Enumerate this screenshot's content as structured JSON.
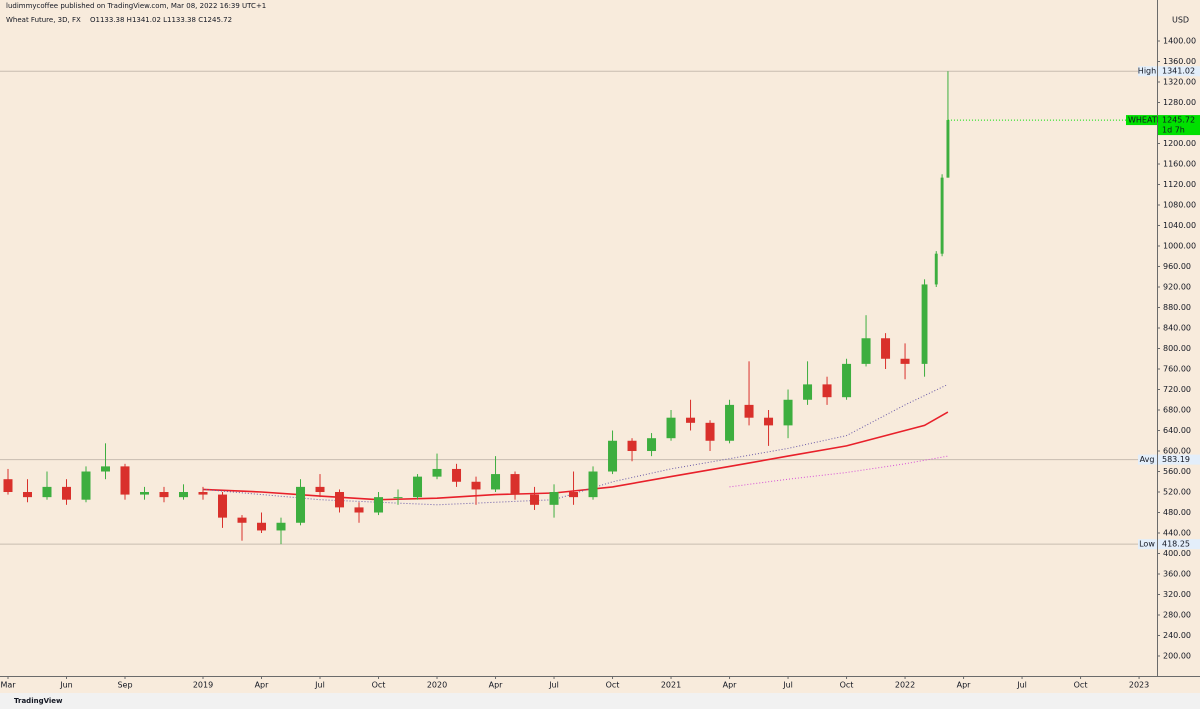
{
  "header": {
    "author_line": "ludimmycoffee published on TradingView.com, Mar 08, 2022 16:39 UTC+1",
    "symbol_line": "Wheat Future, 3D, FX",
    "ohlc": "O1133.38  H1341.02  L1133.38  C1245.72",
    "currency": "USD",
    "brand": "TradingView"
  },
  "chart_data": {
    "type": "candlestick",
    "up_color": "#3dae3f",
    "down_color": "#d9302b",
    "x": [
      0,
      1,
      2,
      3,
      4,
      5,
      6,
      7,
      8,
      9,
      10,
      11,
      12,
      13,
      14,
      15,
      16,
      17,
      18,
      19,
      20,
      21,
      22,
      23,
      24,
      25,
      26,
      27,
      28,
      29,
      30,
      31,
      32,
      33,
      34,
      35,
      36,
      37,
      38,
      39,
      40,
      41,
      42,
      43,
      44,
      45,
      46,
      47,
      47.6,
      47.9,
      48.2
    ],
    "open": [
      545,
      520,
      510,
      530,
      505,
      560,
      570,
      515,
      520,
      510,
      520,
      515,
      470,
      460,
      445,
      460,
      530,
      520,
      490,
      480,
      510,
      510,
      550,
      565,
      540,
      525,
      555,
      515,
      495,
      520,
      510,
      560,
      620,
      600,
      625,
      665,
      655,
      620,
      690,
      665,
      650,
      700,
      730,
      705,
      770,
      820,
      780,
      770,
      925,
      985,
      1133.38
    ],
    "high": [
      565,
      545,
      560,
      545,
      570,
      615,
      575,
      530,
      530,
      535,
      530,
      520,
      475,
      480,
      470,
      545,
      555,
      525,
      500,
      520,
      525,
      555,
      595,
      575,
      550,
      590,
      560,
      530,
      535,
      560,
      570,
      640,
      625,
      635,
      680,
      700,
      660,
      700,
      775,
      680,
      720,
      775,
      745,
      780,
      865,
      830,
      810,
      935,
      990,
      1140,
      1341.02
    ],
    "low": [
      515,
      500,
      505,
      495,
      500,
      545,
      505,
      505,
      500,
      505,
      505,
      450,
      425,
      440,
      418.25,
      455,
      510,
      480,
      460,
      475,
      495,
      505,
      545,
      530,
      495,
      520,
      505,
      485,
      470,
      495,
      505,
      555,
      580,
      590,
      620,
      640,
      600,
      615,
      650,
      610,
      625,
      690,
      690,
      700,
      765,
      760,
      740,
      745,
      920,
      980,
      1133.38
    ],
    "close": [
      520,
      510,
      530,
      505,
      560,
      570,
      515,
      520,
      510,
      520,
      515,
      470,
      460,
      445,
      460,
      530,
      520,
      490,
      480,
      510,
      510,
      550,
      565,
      540,
      525,
      555,
      515,
      495,
      520,
      510,
      560,
      620,
      600,
      625,
      665,
      655,
      620,
      690,
      665,
      650,
      700,
      730,
      705,
      770,
      820,
      780,
      770,
      925,
      985,
      1133.38,
      1245.72
    ],
    "lines": [
      {
        "color": "#e8202a",
        "style": "solid",
        "x": [
          10,
          13,
          16,
          19,
          22,
          25,
          28,
          31,
          34,
          37,
          40,
          43,
          46,
          47,
          48.2
        ],
        "values": [
          525,
          520,
          512,
          505,
          508,
          515,
          518,
          530,
          550,
          570,
          590,
          610,
          640,
          650,
          676
        ]
      },
      {
        "color": "#6a5aa8",
        "style": "dotted",
        "x": [
          10,
          16,
          22,
          28,
          31,
          34,
          37,
          40,
          43,
          46,
          48.2
        ],
        "values": [
          525,
          505,
          495,
          505,
          540,
          565,
          585,
          605,
          630,
          690,
          730
        ]
      },
      {
        "color": "#d64fd6",
        "style": "dotted",
        "x": [
          37,
          40,
          43,
          46,
          48.2
        ],
        "values": [
          530,
          545,
          558,
          575,
          590
        ]
      }
    ],
    "levels": [
      {
        "name": "High",
        "value": 1341.02
      },
      {
        "name": "Avg",
        "value": 583.19
      },
      {
        "name": "Low",
        "value": 418.25
      }
    ],
    "last_price": {
      "symbol": "WHEATF",
      "value": 1245.72,
      "countdown": "1d 7h",
      "color": "#00e000"
    },
    "xlim": [
      -0.41,
      58.92
    ],
    "ylim": [
      161,
      1480
    ],
    "xticks": [
      {
        "value": 0,
        "label": "Mar"
      },
      {
        "value": 3,
        "label": "Jun"
      },
      {
        "value": 6,
        "label": "Sep"
      },
      {
        "value": 10,
        "label": "2019"
      },
      {
        "value": 13,
        "label": "Apr"
      },
      {
        "value": 16,
        "label": "Jul"
      },
      {
        "value": 19,
        "label": "Oct"
      },
      {
        "value": 22,
        "label": "2020"
      },
      {
        "value": 25,
        "label": "Apr"
      },
      {
        "value": 28,
        "label": "Jul"
      },
      {
        "value": 31,
        "label": "Oct"
      },
      {
        "value": 34,
        "label": "2021"
      },
      {
        "value": 37,
        "label": "Apr"
      },
      {
        "value": 40,
        "label": "Jul"
      },
      {
        "value": 43,
        "label": "Oct"
      },
      {
        "value": 46,
        "label": "2022"
      },
      {
        "value": 49,
        "label": "Apr"
      },
      {
        "value": 52,
        "label": "Jul"
      },
      {
        "value": 55,
        "label": "Oct"
      },
      {
        "value": 58,
        "label": "2023"
      }
    ],
    "yticks": [
      {
        "value": 200,
        "label": "200.00"
      },
      {
        "value": 240,
        "label": "240.00"
      },
      {
        "value": 280,
        "label": "280.00"
      },
      {
        "value": 320,
        "label": "320.00"
      },
      {
        "value": 360,
        "label": "360.00"
      },
      {
        "value": 400,
        "label": "400.00"
      },
      {
        "value": 440,
        "label": "440.00"
      },
      {
        "value": 480,
        "label": "480.00"
      },
      {
        "value": 520,
        "label": "520.00"
      },
      {
        "value": 560,
        "label": "560.00"
      },
      {
        "value": 600,
        "label": "600.00"
      },
      {
        "value": 640,
        "label": "640.00"
      },
      {
        "value": 680,
        "label": "680.00"
      },
      {
        "value": 720,
        "label": "720.00"
      },
      {
        "value": 760,
        "label": "760.00"
      },
      {
        "value": 800,
        "label": "800.00"
      },
      {
        "value": 840,
        "label": "840.00"
      },
      {
        "value": 880,
        "label": "880.00"
      },
      {
        "value": 920,
        "label": "920.00"
      },
      {
        "value": 960,
        "label": "960.00"
      },
      {
        "value": 1000,
        "label": "1000.00"
      },
      {
        "value": 1040,
        "label": "1040.00"
      },
      {
        "value": 1080,
        "label": "1080.00"
      },
      {
        "value": 1120,
        "label": "1120.00"
      },
      {
        "value": 1160,
        "label": "1160.00"
      },
      {
        "value": 1200,
        "label": "1200.00"
      },
      {
        "value": 1240,
        "label": "1240.00"
      },
      {
        "value": 1280,
        "label": "1280.00"
      },
      {
        "value": 1320,
        "label": "1320.00"
      },
      {
        "value": 1360,
        "label": "1360.00"
      },
      {
        "value": 1400,
        "label": "1400.00"
      }
    ],
    "grid": false
  }
}
